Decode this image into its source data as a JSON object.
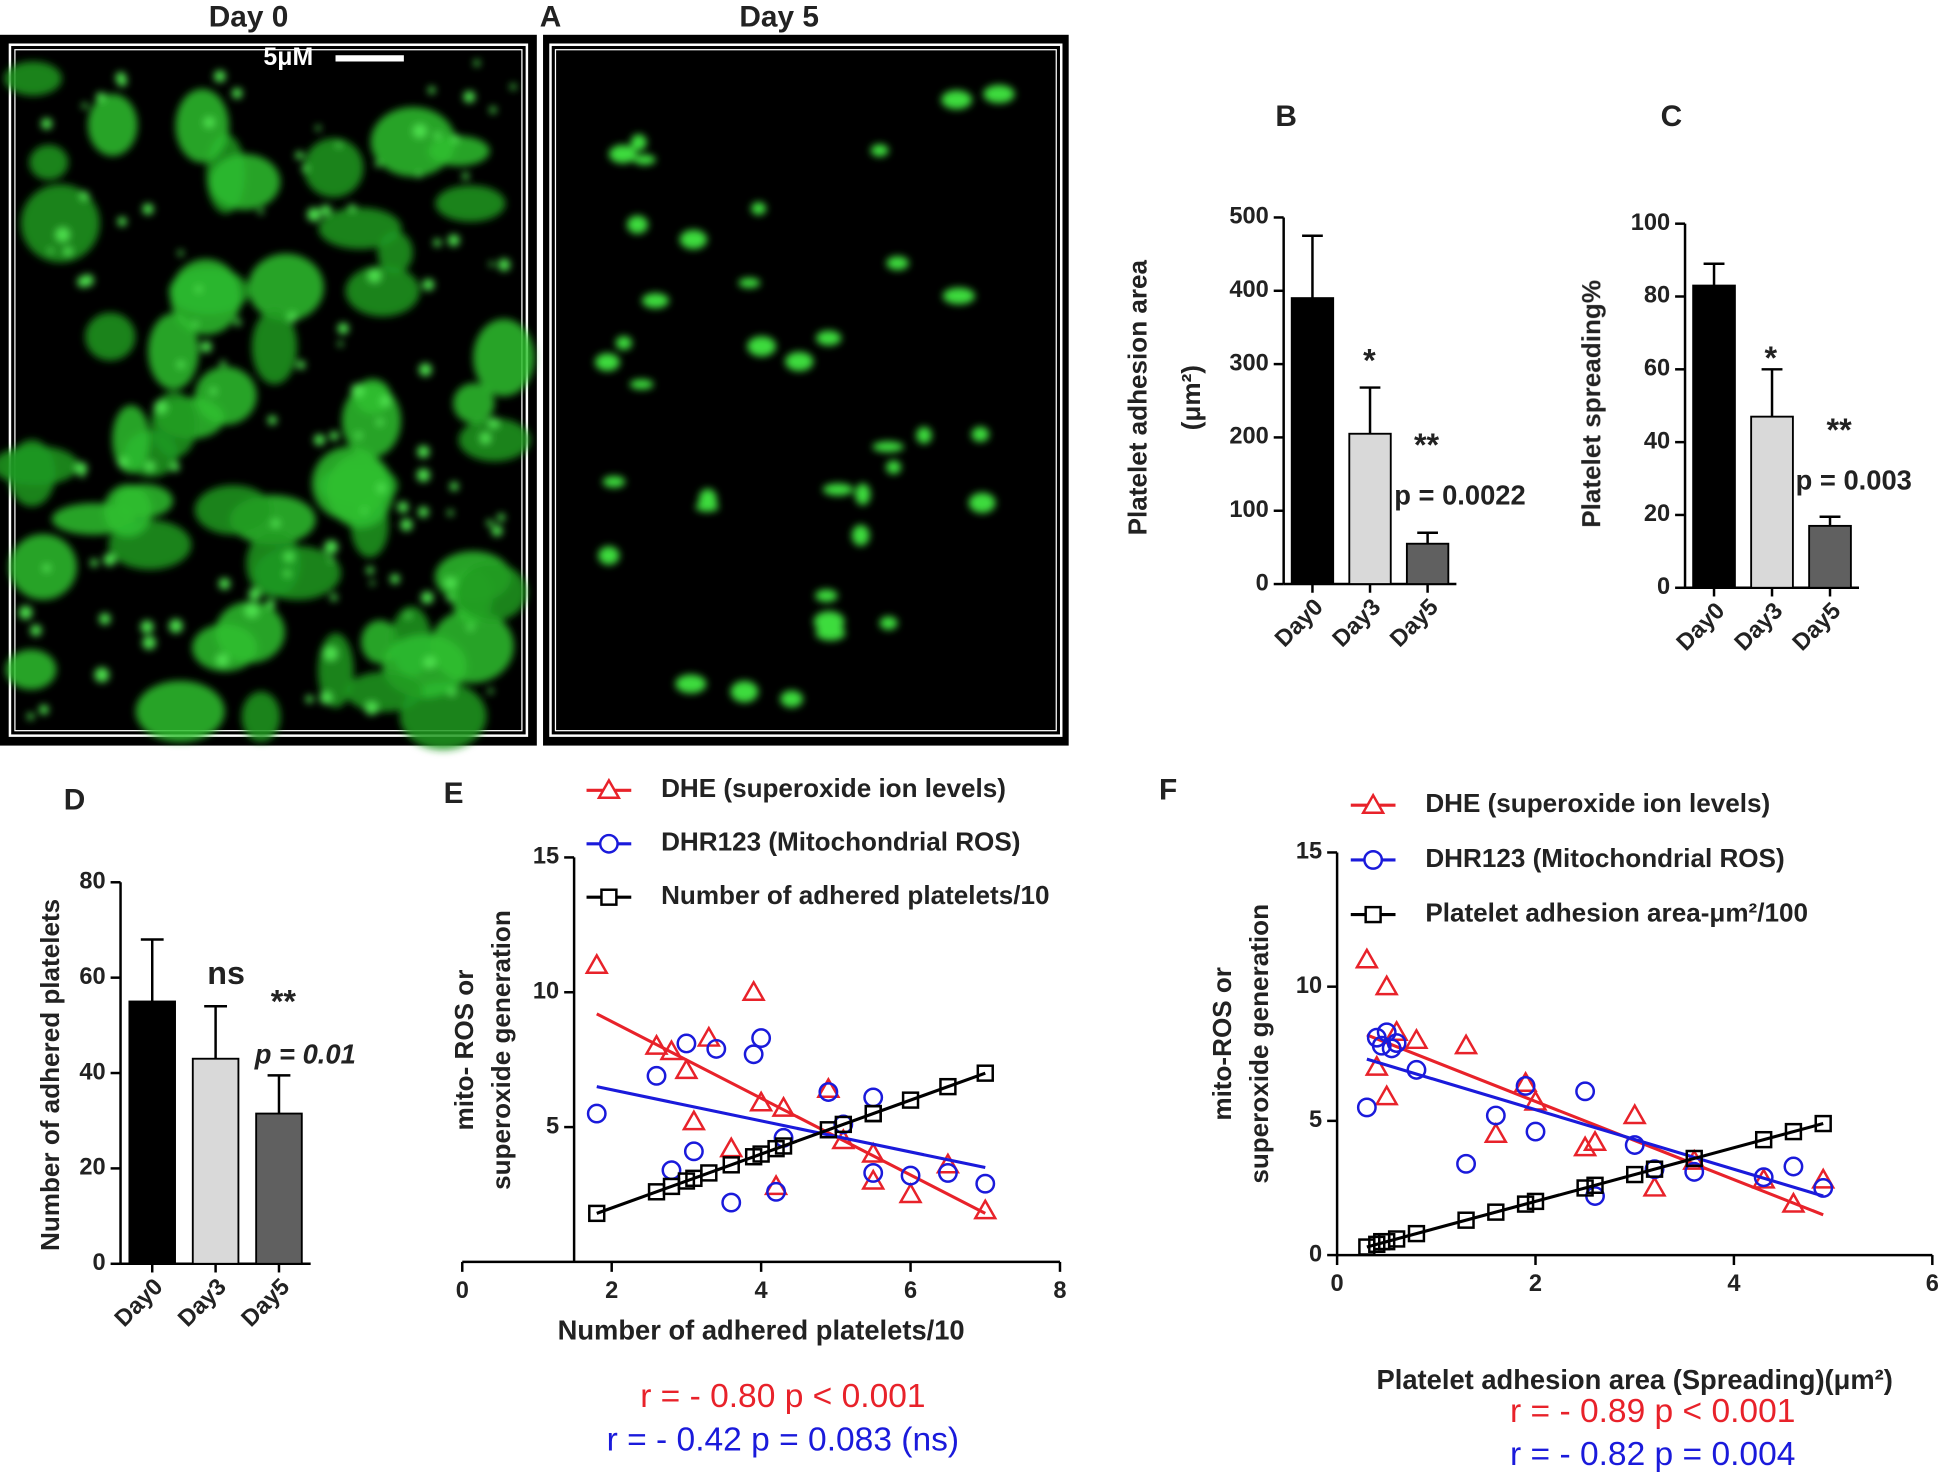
{
  "panel_a": {
    "title_left": "Day 0",
    "letter": "A",
    "title_right": "Day 5",
    "scale_bar": "5μM"
  },
  "chart_data": [
    {
      "type": "bar",
      "letter": "B",
      "ylabel": [
        "Platelet adhesion area",
        "(μm²)"
      ],
      "categories": [
        "Day0",
        "Day3",
        "Day5"
      ],
      "values": [
        390,
        205,
        55
      ],
      "errors": [
        85,
        63,
        15
      ],
      "colors": [
        "#000000",
        "#d9d9d9",
        "#606060"
      ],
      "ylim": [
        0,
        500
      ],
      "yticks": [
        0,
        100,
        200,
        300,
        400,
        500
      ],
      "annotations": [
        "*",
        "**",
        "p = 0.0022"
      ]
    },
    {
      "type": "bar",
      "letter": "C",
      "ylabel": [
        "Platelet spreading%"
      ],
      "categories": [
        "Day0",
        "Day3",
        "Day5"
      ],
      "values": [
        83,
        47,
        17
      ],
      "errors": [
        6,
        13,
        2.5
      ],
      "colors": [
        "#000000",
        "#d9d9d9",
        "#606060"
      ],
      "ylim": [
        0,
        100
      ],
      "yticks": [
        0,
        20,
        40,
        60,
        80,
        100
      ],
      "annotations": [
        "*",
        "**",
        "p = 0.003"
      ]
    },
    {
      "type": "bar",
      "letter": "D",
      "ylabel": [
        "Number of adhered platelets"
      ],
      "categories": [
        "Day0",
        "Day3",
        "Day5"
      ],
      "values": [
        55,
        43,
        31.5
      ],
      "errors": [
        13,
        11,
        8
      ],
      "colors": [
        "#000000",
        "#d9d9d9",
        "#606060"
      ],
      "ylim": [
        0,
        80
      ],
      "yticks": [
        0,
        20,
        40,
        60,
        80
      ],
      "annotations": [
        "ns",
        "**",
        "p = 0.01"
      ]
    },
    {
      "type": "scatter",
      "letter": "E",
      "ylabel": [
        "mito- ROS or",
        "superoxide generation"
      ],
      "xlabel": "Number of adhered platelets/10",
      "xlim": [
        0,
        8
      ],
      "ylim": [
        0,
        15
      ],
      "xticks": [
        0,
        2,
        4,
        6,
        8
      ],
      "yticks": [
        5,
        10,
        15
      ],
      "series": [
        {
          "name": "DHE (superoxide ion levels)",
          "color": "#e8222a",
          "marker": "triangle",
          "x": [
            1.8,
            2.6,
            2.8,
            3,
            3.1,
            3.3,
            3.6,
            3.9,
            4,
            4.2,
            4.3,
            4.9,
            5.1,
            5.5,
            5.5,
            6,
            6.5,
            7
          ],
          "y": [
            11,
            8,
            7.8,
            7.1,
            5.2,
            8.3,
            4.2,
            10,
            5.9,
            2.8,
            5.7,
            6.4,
            4.5,
            3,
            4,
            2.5,
            3.6,
            1.9
          ],
          "fit": {
            "x": [
              1.8,
              7
            ],
            "y": [
              9.2,
              1.8
            ]
          }
        },
        {
          "name": "DHR123 (Mitochondrial ROS)",
          "color": "#1a1adb",
          "marker": "circle",
          "x": [
            1.8,
            2.6,
            2.8,
            3,
            3.1,
            3.4,
            3.6,
            3.9,
            4,
            4.2,
            4.3,
            4.9,
            5.1,
            5.5,
            5.5,
            6,
            6.5,
            7
          ],
          "y": [
            5.5,
            6.9,
            3.4,
            8.1,
            4.1,
            7.9,
            2.2,
            7.7,
            8.3,
            2.6,
            4.6,
            6.3,
            5.1,
            3.3,
            6.1,
            3.2,
            3.3,
            2.9
          ],
          "fit": {
            "x": [
              1.8,
              7
            ],
            "y": [
              6.5,
              3.5
            ]
          }
        },
        {
          "name": "Number of adhered platelets/10",
          "color": "#000000",
          "marker": "square",
          "x": [
            1.8,
            2.6,
            2.8,
            3,
            3.1,
            3.3,
            3.6,
            3.9,
            4,
            4.2,
            4.3,
            4.9,
            5.1,
            5.5,
            5.5,
            6,
            6.5,
            7
          ],
          "y": [
            1.8,
            2.6,
            2.8,
            3,
            3.1,
            3.3,
            3.6,
            3.9,
            4,
            4.2,
            4.3,
            4.9,
            5.1,
            5.5,
            5.5,
            6,
            6.5,
            7
          ],
          "fit": {
            "x": [
              1.8,
              7
            ],
            "y": [
              1.8,
              7
            ]
          }
        }
      ],
      "stats": [
        {
          "text": "r = - 0.80   p < 0.001",
          "color": "#e8222a"
        },
        {
          "text": "r = - 0.42   p = 0.083 (ns)",
          "color": "#1a1adb"
        }
      ]
    },
    {
      "type": "scatter",
      "letter": "F",
      "ylabel": [
        "mito-ROS or",
        "superoxide generation"
      ],
      "xlabel": "Platelet adhesion area (Spreading)(μm²)",
      "xlim": [
        0,
        6
      ],
      "ylim": [
        0,
        15
      ],
      "xticks": [
        0,
        2,
        4,
        6
      ],
      "yticks": [
        0,
        5,
        10,
        15
      ],
      "series": [
        {
          "name": "DHE (superoxide ion levels)",
          "color": "#e8222a",
          "marker": "triangle",
          "x": [
            0.3,
            0.4,
            0.5,
            0.5,
            0.6,
            0.8,
            1.3,
            1.6,
            1.9,
            2,
            2.5,
            2.6,
            3,
            3.2,
            3.6,
            4.3,
            4.6,
            4.9
          ],
          "y": [
            11,
            7,
            10,
            5.9,
            8.3,
            8,
            7.8,
            4.5,
            6.4,
            5.7,
            4,
            4.2,
            5.2,
            2.5,
            3.5,
            2.8,
            1.9,
            2.8
          ],
          "fit": {
            "x": [
              0.3,
              4.9
            ],
            "y": [
              8.2,
              1.5
            ]
          }
        },
        {
          "name": "DHR123 (Mitochondrial ROS)",
          "color": "#1a1adb",
          "marker": "circle",
          "x": [
            0.3,
            0.4,
            0.45,
            0.5,
            0.55,
            0.6,
            0.8,
            1.3,
            1.6,
            1.9,
            2,
            2.5,
            2.6,
            3,
            3.2,
            3.6,
            4.3,
            4.6,
            4.9
          ],
          "y": [
            5.5,
            8.1,
            7.8,
            8.3,
            7.7,
            7.9,
            6.9,
            3.4,
            5.2,
            6.3,
            4.6,
            6.1,
            2.2,
            4.1,
            3.2,
            3.1,
            2.9,
            3.3,
            2.5
          ],
          "fit": {
            "x": [
              0.3,
              4.9
            ],
            "y": [
              7.3,
              2.2
            ]
          }
        },
        {
          "name": "Platelet adhesion area-μm²/100",
          "color": "#000000",
          "marker": "square",
          "x": [
            0.3,
            0.4,
            0.45,
            0.5,
            0.6,
            0.8,
            1.3,
            1.6,
            1.9,
            2,
            2.5,
            2.6,
            3,
            3.2,
            3.6,
            4.3,
            4.6,
            4.9
          ],
          "y": [
            0.3,
            0.4,
            0.5,
            0.5,
            0.6,
            0.8,
            1.3,
            1.6,
            1.9,
            2,
            2.5,
            2.6,
            3,
            3.2,
            3.6,
            4.3,
            4.6,
            4.9
          ],
          "fit": {
            "x": [
              0.3,
              4.9
            ],
            "y": [
              0.3,
              4.9
            ]
          }
        }
      ],
      "stats": [
        {
          "text": "r = - 0.89   p < 0.001",
          "color": "#e8222a"
        },
        {
          "text": "r = - 0.82   p = 0.004",
          "color": "#1a1adb"
        }
      ]
    }
  ]
}
